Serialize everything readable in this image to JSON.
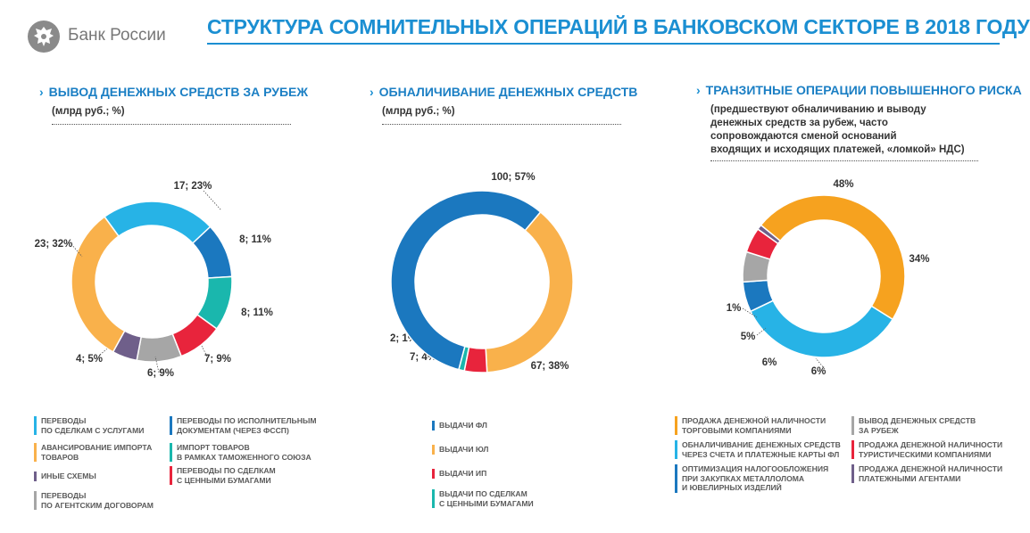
{
  "header": {
    "bank_name": "Банк России",
    "title": "СТРУКТУРА СОМНИТЕЛЬНЫХ ОПЕРАЦИЙ В БАНКОВСКОМ СЕКТОРЕ В 2018 ГОДУ"
  },
  "colors": {
    "light_blue": "#27b3e6",
    "dark_blue": "#1b78bf",
    "teal": "#1ab7ad",
    "red": "#e8243c",
    "gray": "#a6a6a6",
    "purple": "#6f5f8a",
    "orange": "#f9b14b",
    "orange_dark": "#f6a21f",
    "title_blue": "#1b8fd2"
  },
  "chart_data": [
    {
      "type": "pie",
      "title": "ВЫВОД ДЕНЕЖНЫХ СРЕДСТВ ЗА РУБЕЖ",
      "subtitle": "(млрд руб.; %)",
      "slices": [
        {
          "name": "ПЕРЕВОДЫ ПО СДЕЛКАМ С УСЛУГАМИ",
          "value": 17,
          "percent": 23,
          "label": "17; 23%",
          "color": "#27b3e6"
        },
        {
          "name": "ПЕРЕВОДЫ ПО ИСПОЛНИТЕЛЬНЫМ ДОКУМЕНТАМ (ЧЕРЕЗ ФССП)",
          "value": 8,
          "percent": 11,
          "label": "8; 11%",
          "color": "#1b78bf"
        },
        {
          "name": "ИМПОРТ ТОВАРОВ В РАМКАХ ТАМОЖЕННОГО СОЮЗА",
          "value": 8,
          "percent": 11,
          "label": "8; 11%",
          "color": "#1ab7ad"
        },
        {
          "name": "ПЕРЕВОДЫ ПО СДЕЛКАМ С ЦЕННЫМИ БУМАГАМИ",
          "value": 7,
          "percent": 9,
          "label": "7; 9%",
          "color": "#e8243c"
        },
        {
          "name": "ПЕРЕВОДЫ ПО АГЕНТСКИМ ДОГОВОРАМ",
          "value": 6,
          "percent": 9,
          "label": "6; 9%",
          "color": "#a6a6a6"
        },
        {
          "name": "ИНЫЕ СХЕМЫ",
          "value": 4,
          "percent": 5,
          "label": "4; 5%",
          "color": "#6f5f8a"
        },
        {
          "name": "АВАНСИРОВАНИЕ ИМПОРТА ТОВАРОВ",
          "value": 23,
          "percent": 32,
          "label": "23; 32%",
          "color": "#f9b14b"
        }
      ],
      "legend": [
        {
          "line1": "ПЕРЕВОДЫ",
          "line2": "ПО СДЕЛКАМ С УСЛУГАМИ",
          "line3": "",
          "color": "#27b3e6"
        },
        {
          "line1": "АВАНСИРОВАНИЕ ИМПОРТА",
          "line2": "ТОВАРОВ",
          "line3": "",
          "color": "#f9b14b"
        },
        {
          "line1": "ИНЫЕ СХЕМЫ",
          "line2": "",
          "line3": "",
          "color": "#6f5f8a"
        },
        {
          "line1": "ПЕРЕВОДЫ",
          "line2": "ПО АГЕНТСКИМ ДОГОВОРАМ",
          "line3": "",
          "color": "#a6a6a6"
        },
        {
          "line1": "ПЕРЕВОДЫ ПО ИСПОЛНИТЕЛЬНЫМ",
          "line2": "ДОКУМЕНТАМ (ЧЕРЕЗ ФССП)",
          "line3": "",
          "color": "#1b78bf"
        },
        {
          "line1": "ИМПОРТ ТОВАРОВ",
          "line2": "В РАМКАХ ТАМОЖЕННОГО СОЮЗА",
          "line3": "",
          "color": "#1ab7ad"
        },
        {
          "line1": "ПЕРЕВОДЫ ПО СДЕЛКАМ",
          "line2": "С ЦЕННЫМИ БУМАГАМИ",
          "line3": "",
          "color": "#e8243c"
        }
      ]
    },
    {
      "type": "pie",
      "title": "ОБНАЛИЧИВАНИЕ ДЕНЕЖНЫХ СРЕДСТВ",
      "subtitle": "(млрд руб.; %)",
      "slices": [
        {
          "name": "ВЫДАЧИ ЮЛ",
          "value": 67,
          "percent": 38,
          "label": "67; 38%",
          "color": "#f9b14b"
        },
        {
          "name": "ВЫДАЧИ ИП",
          "value": 7,
          "percent": 4,
          "label": "7; 4%",
          "color": "#e8243c"
        },
        {
          "name": "ВЫДАЧИ ПО СДЕЛКАМ С ЦЕННЫМИ БУМАГАМИ",
          "value": 2,
          "percent": 1,
          "label": "2; 1%",
          "color": "#1ab7ad"
        },
        {
          "name": "ВЫДАЧИ ФЛ",
          "value": 100,
          "percent": 57,
          "label": "100; 57%",
          "color": "#1b78bf"
        }
      ],
      "legend": [
        {
          "line1": "ВЫДАЧИ ФЛ",
          "line2": "",
          "line3": "",
          "color": "#1b78bf"
        },
        {
          "line1": "ВЫДАЧИ ЮЛ",
          "line2": "",
          "line3": "",
          "color": "#f9b14b"
        },
        {
          "line1": "ВЫДАЧИ ИП",
          "line2": "",
          "line3": "",
          "color": "#e8243c"
        },
        {
          "line1": "ВЫДАЧИ ПО СДЕЛКАМ",
          "line2": "С ЦЕННЫМИ БУМАГАМИ",
          "line3": "",
          "color": "#1ab7ad"
        }
      ]
    },
    {
      "type": "pie",
      "title": "ТРАНЗИТНЫЕ ОПЕРАЦИИ ПОВЫШЕННОГО РИСКА",
      "subtitle_lines": [
        "(предшествуют обналичиванию и выводу",
        "денежных средств за рубеж, часто",
        "сопровождаются сменой оснований",
        "входящих и исходящих платежей, «ломкой» НДС)"
      ],
      "slices": [
        {
          "name": "ОБНАЛИЧИВАНИЕ ДЕНЕЖНЫХ СРЕДСТВ ЧЕРЕЗ СЧЕТА И ПЛАТЕЖНЫЕ КАРТЫ ФЛ",
          "percent": 34,
          "label": "34%",
          "color": "#27b3e6"
        },
        {
          "name": "ОПТИМИЗАЦИЯ НАЛОГООБЛОЖЕНИЯ ПРИ ЗАКУПКАХ МЕТАЛЛОЛОМА И ЮВЕЛИРНЫХ ИЗДЕЛИЙ",
          "percent": 6,
          "label": "6%",
          "color": "#1b78bf"
        },
        {
          "name": "ВЫВОД ДЕНЕЖНЫХ СРЕДСТВ ЗА РУБЕЖ",
          "percent": 6,
          "label": "6%",
          "color": "#a6a6a6"
        },
        {
          "name": "ПРОДАЖА ДЕНЕЖНОЙ НАЛИЧНОСТИ ТУРИСТИЧЕСКИМИ КОМПАНИЯМИ",
          "percent": 5,
          "label": "5%",
          "color": "#e8243c"
        },
        {
          "name": "ПРОДАЖА ДЕНЕЖНОЙ НАЛИЧНОСТИ ПЛАТЕЖНЫМИ АГЕНТАМИ",
          "percent": 1,
          "label": "1%",
          "color": "#6f5f8a"
        },
        {
          "name": "ПРОДАЖА ДЕНЕЖНОЙ НАЛИЧНОСТИ ТОРГОВЫМИ КОМПАНИЯМИ",
          "percent": 48,
          "label": "48%",
          "color": "#f6a21f"
        }
      ],
      "legend": [
        {
          "line1": "ПРОДАЖА ДЕНЕЖНОЙ НАЛИЧНОСТИ",
          "line2": "ТОРГОВЫМИ КОМПАНИЯМИ",
          "line3": "",
          "color": "#f6a21f"
        },
        {
          "line1": "ОБНАЛИЧИВАНИЕ ДЕНЕЖНЫХ СРЕДСТВ",
          "line2": "ЧЕРЕЗ СЧЕТА И ПЛАТЕЖНЫЕ КАРТЫ ФЛ",
          "line3": "",
          "color": "#27b3e6"
        },
        {
          "line1": "ОПТИМИЗАЦИЯ НАЛОГООБЛОЖЕНИЯ",
          "line2": "ПРИ ЗАКУПКАХ МЕТАЛЛОЛОМА",
          "line3": "И ЮВЕЛИРНЫХ ИЗДЕЛИЙ",
          "color": "#1b78bf"
        },
        {
          "line1": "ВЫВОД ДЕНЕЖНЫХ СРЕДСТВ",
          "line2": "ЗА РУБЕЖ",
          "line3": "",
          "color": "#a6a6a6"
        },
        {
          "line1": "ПРОДАЖА ДЕНЕЖНОЙ НАЛИЧНОСТИ",
          "line2": "ТУРИСТИЧЕСКИМИ КОМПАНИЯМИ",
          "line3": "",
          "color": "#e8243c"
        },
        {
          "line1": "ПРОДАЖА ДЕНЕЖНОЙ НАЛИЧНОСТИ",
          "line2": "ПЛАТЕЖНЫМИ АГЕНТАМИ",
          "line3": "",
          "color": "#6f5f8a"
        }
      ]
    }
  ]
}
